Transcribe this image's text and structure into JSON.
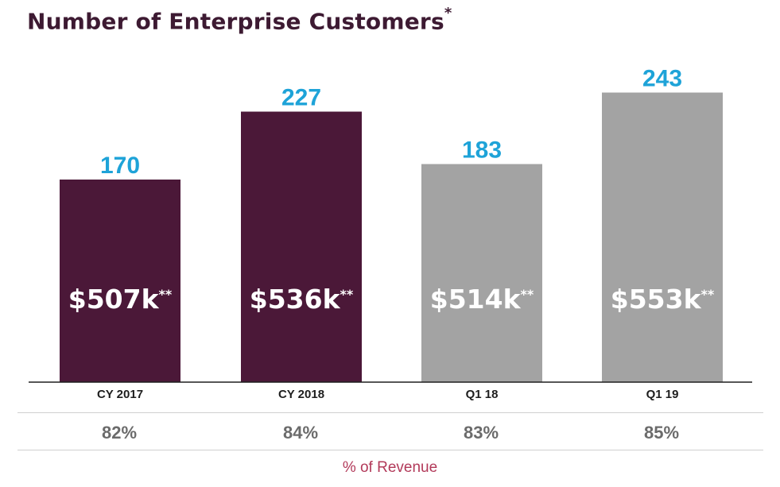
{
  "title": "Number of Enterprise Customers",
  "title_marker": "*",
  "chart_data": {
    "type": "bar",
    "title": "Number of Enterprise Customers*",
    "categories": [
      "CY 2017",
      "CY 2018",
      "Q1 18",
      "Q1 19"
    ],
    "values": [
      170,
      227,
      183,
      243
    ],
    "bar_labels": [
      "$507k",
      "$536k",
      "$514k",
      "$553k"
    ],
    "bar_label_marker": "**",
    "colors": [
      "#4b1838",
      "#4b1838",
      "#a3a3a3",
      "#a3a3a3"
    ],
    "value_label_color": "#1ea3d8",
    "ylim": [
      0,
      260
    ],
    "grid": false,
    "legend": "none"
  },
  "revenue_pct": [
    "82%",
    "84%",
    "83%",
    "85%"
  ],
  "revenue_label": "% of Revenue"
}
